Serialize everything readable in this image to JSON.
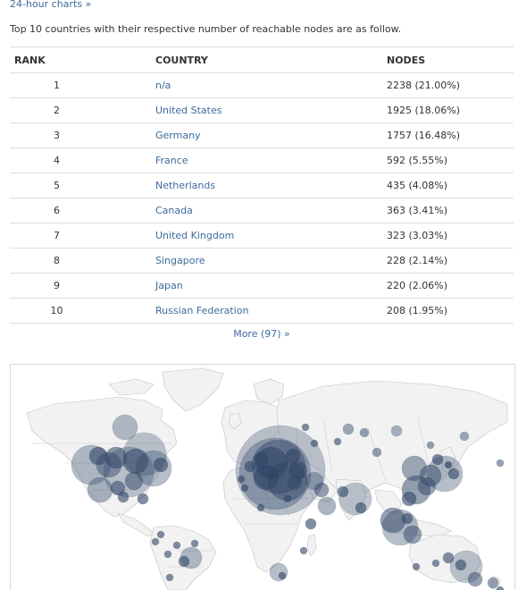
{
  "nav": {
    "charts_link": "24-hour charts »"
  },
  "intro_text": "Top 10 countries with their respective number of reachable nodes are as follow.",
  "table": {
    "headers": {
      "rank": "RANK",
      "country": "COUNTRY",
      "nodes": "NODES"
    },
    "rows": [
      {
        "rank": "1",
        "country": "n/a",
        "nodes": "2238 (21.00%)"
      },
      {
        "rank": "2",
        "country": "United States",
        "nodes": "1925 (18.06%)"
      },
      {
        "rank": "3",
        "country": "Germany",
        "nodes": "1757 (16.48%)"
      },
      {
        "rank": "4",
        "country": "France",
        "nodes": "592 (5.55%)"
      },
      {
        "rank": "5",
        "country": "Netherlands",
        "nodes": "435 (4.08%)"
      },
      {
        "rank": "6",
        "country": "Canada",
        "nodes": "363 (3.41%)"
      },
      {
        "rank": "7",
        "country": "United Kingdom",
        "nodes": "323 (3.03%)"
      },
      {
        "rank": "8",
        "country": "Singapore",
        "nodes": "228 (2.14%)"
      },
      {
        "rank": "9",
        "country": "Japan",
        "nodes": "220 (2.06%)"
      },
      {
        "rank": "10",
        "country": "Russian Federation",
        "nodes": "208 (1.95%)"
      }
    ]
  },
  "more_link": "More (97) »",
  "colors": {
    "link": "#3d6b9c",
    "node_bubble": "#2f4566",
    "land": "#f2f2f2",
    "country_border": "#c2c2c2"
  }
}
